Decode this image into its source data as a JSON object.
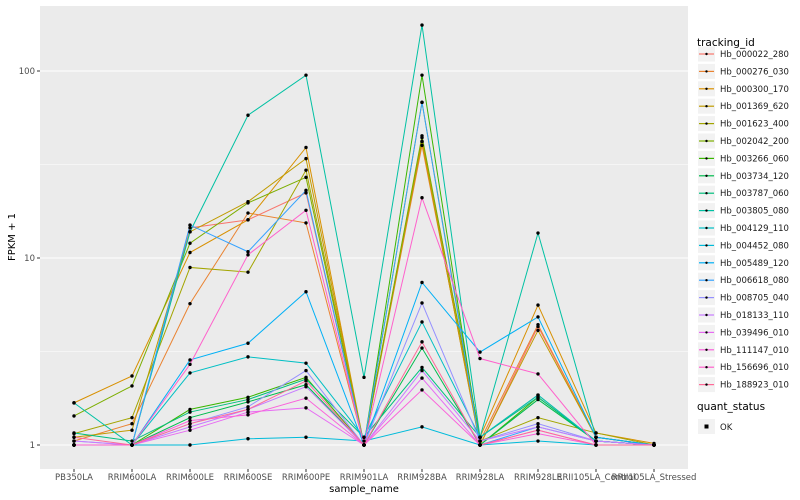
{
  "window": {
    "description": "ggplot2 multi-series line chart of gene expression (FPKM) across rubber tree samples"
  },
  "theme": {
    "background": "#FFFFFF",
    "panel_bg": "#EBEBEB",
    "grid_color": "#FFFFFF",
    "tick_label_color": "#4D4D4D",
    "axis_title_color": "#000000",
    "legend_key_bg": "#F2F2F2",
    "point_color": "#000000"
  },
  "chart_data": {
    "type": "line",
    "title": "",
    "xlabel": "sample_name",
    "ylabel": "FPKM + 1",
    "y_scale": "log10",
    "ylim": [
      0.75,
      223
    ],
    "grid": true,
    "legend_position": "right",
    "y_major_ticks": [
      1,
      10,
      100
    ],
    "y_tick_labels": [
      "1",
      "10",
      "100"
    ],
    "y_minor_gridlines": [
      3.162,
      31.62
    ],
    "point_color": "#000000",
    "categories": [
      "PB350LA",
      "RRIM600LA",
      "RRIM600LE",
      "RRIM600SE",
      "RRIM600PE",
      "RRIM901LA",
      "RRIM928BA",
      "RRIM928LA",
      "RRIM928LE",
      "RRII105LA_Control",
      "RRII105LA_Stressed"
    ],
    "legend": {
      "tracking_title": "tracking_id",
      "quant_title": "quant_status",
      "quant_value": "OK"
    },
    "series": [
      {
        "name": "Hb_000022_280",
        "color": "#F8766D",
        "values": [
          1.0,
          1.0,
          14.5,
          16.0,
          22.3,
          1.0,
          42.0,
          1.0,
          4.3,
          1.1,
          1.0
        ]
      },
      {
        "name": "Hb_000276_030",
        "color": "#EA8331",
        "values": [
          1.05,
          1.3,
          5.7,
          17.4,
          15.4,
          1.0,
          40.0,
          1.05,
          4.4,
          1.1,
          1.0
        ]
      },
      {
        "name": "Hb_000300_170",
        "color": "#D89000",
        "values": [
          1.68,
          2.34,
          10.7,
          16.0,
          39.0,
          1.0,
          44.0,
          1.1,
          5.6,
          1.16,
          1.02
        ]
      },
      {
        "name": "Hb_001369_620",
        "color": "#C09B00",
        "values": [
          1.1,
          1.2,
          13.8,
          20.0,
          34.0,
          1.0,
          42.0,
          1.0,
          4.1,
          1.1,
          1.0
        ]
      },
      {
        "name": "Hb_001623_400",
        "color": "#A3A500",
        "values": [
          1.15,
          1.4,
          8.9,
          8.4,
          29.5,
          1.0,
          68.0,
          1.05,
          1.4,
          1.16,
          1.0
        ]
      },
      {
        "name": "Hb_002042_200",
        "color": "#7CAE00",
        "values": [
          1.43,
          2.07,
          12.0,
          19.7,
          27.0,
          1.0,
          45.0,
          1.1,
          1.85,
          1.05,
          1.0
        ]
      },
      {
        "name": "Hb_003266_060",
        "color": "#39B600",
        "values": [
          1.0,
          1.0,
          1.55,
          1.8,
          2.3,
          1.0,
          95.0,
          1.0,
          1.8,
          1.05,
          1.0
        ]
      },
      {
        "name": "Hb_003734_120",
        "color": "#00BB4E",
        "values": [
          1.0,
          1.0,
          1.4,
          1.7,
          2.1,
          1.0,
          3.3,
          1.0,
          1.75,
          1.05,
          1.0
        ]
      },
      {
        "name": "Hb_003787_060",
        "color": "#00BF7D",
        "values": [
          1.16,
          1.05,
          1.5,
          1.75,
          2.25,
          1.1,
          2.6,
          1.1,
          1.8,
          1.05,
          1.0
        ]
      },
      {
        "name": "Hb_003805_080",
        "color": "#00C1A3",
        "values": [
          1.68,
          1.0,
          13.8,
          58.0,
          95.0,
          2.3,
          176.0,
          1.1,
          13.6,
          1.1,
          1.0
        ]
      },
      {
        "name": "Hb_004129_110",
        "color": "#00BFC4",
        "values": [
          1.0,
          1.0,
          2.43,
          2.96,
          2.74,
          1.1,
          4.55,
          1.1,
          1.85,
          1.05,
          1.0
        ]
      },
      {
        "name": "Hb_004452_080",
        "color": "#00BBDA",
        "values": [
          1.0,
          1.0,
          1.0,
          1.08,
          1.1,
          1.05,
          1.25,
          1.0,
          1.05,
          1.0,
          1.0
        ]
      },
      {
        "name": "Hb_005489_120",
        "color": "#00B0F6",
        "values": [
          1.0,
          1.0,
          2.85,
          3.5,
          6.6,
          1.0,
          7.4,
          3.14,
          4.84,
          1.1,
          1.0
        ]
      },
      {
        "name": "Hb_006618_080",
        "color": "#35A2FF",
        "values": [
          1.0,
          1.0,
          15.0,
          10.8,
          23.0,
          1.0,
          68.0,
          1.0,
          1.25,
          1.05,
          1.0
        ]
      },
      {
        "name": "Hb_008705_040",
        "color": "#9590FF",
        "values": [
          1.05,
          1.0,
          1.3,
          1.6,
          2.5,
          1.0,
          5.75,
          1.05,
          1.3,
          1.05,
          1.0
        ]
      },
      {
        "name": "Hb_018133_110",
        "color": "#C77CFF",
        "values": [
          1.05,
          1.0,
          1.25,
          1.55,
          2.05,
          1.0,
          2.5,
          1.05,
          1.25,
          1.05,
          1.0
        ]
      },
      {
        "name": "Hb_039496_010",
        "color": "#E76BF3",
        "values": [
          1.0,
          1.0,
          1.2,
          1.5,
          1.58,
          1.0,
          2.28,
          1.0,
          1.2,
          1.0,
          1.0
        ]
      },
      {
        "name": "Hb_111147_010",
        "color": "#FA62DB",
        "values": [
          1.0,
          1.0,
          1.35,
          1.45,
          1.78,
          1.0,
          1.97,
          1.0,
          1.15,
          1.0,
          1.0
        ]
      },
      {
        "name": "Hb_156696_010",
        "color": "#FF61CC",
        "values": [
          1.0,
          1.0,
          2.7,
          10.4,
          18.0,
          1.0,
          21.0,
          2.9,
          2.4,
          1.0,
          1.0
        ]
      },
      {
        "name": "Hb_188923_010",
        "color": "#FF6A98",
        "values": [
          1.1,
          1.0,
          1.3,
          1.55,
          2.2,
          1.0,
          3.56,
          1.0,
          1.2,
          1.0,
          1.0
        ]
      }
    ]
  }
}
